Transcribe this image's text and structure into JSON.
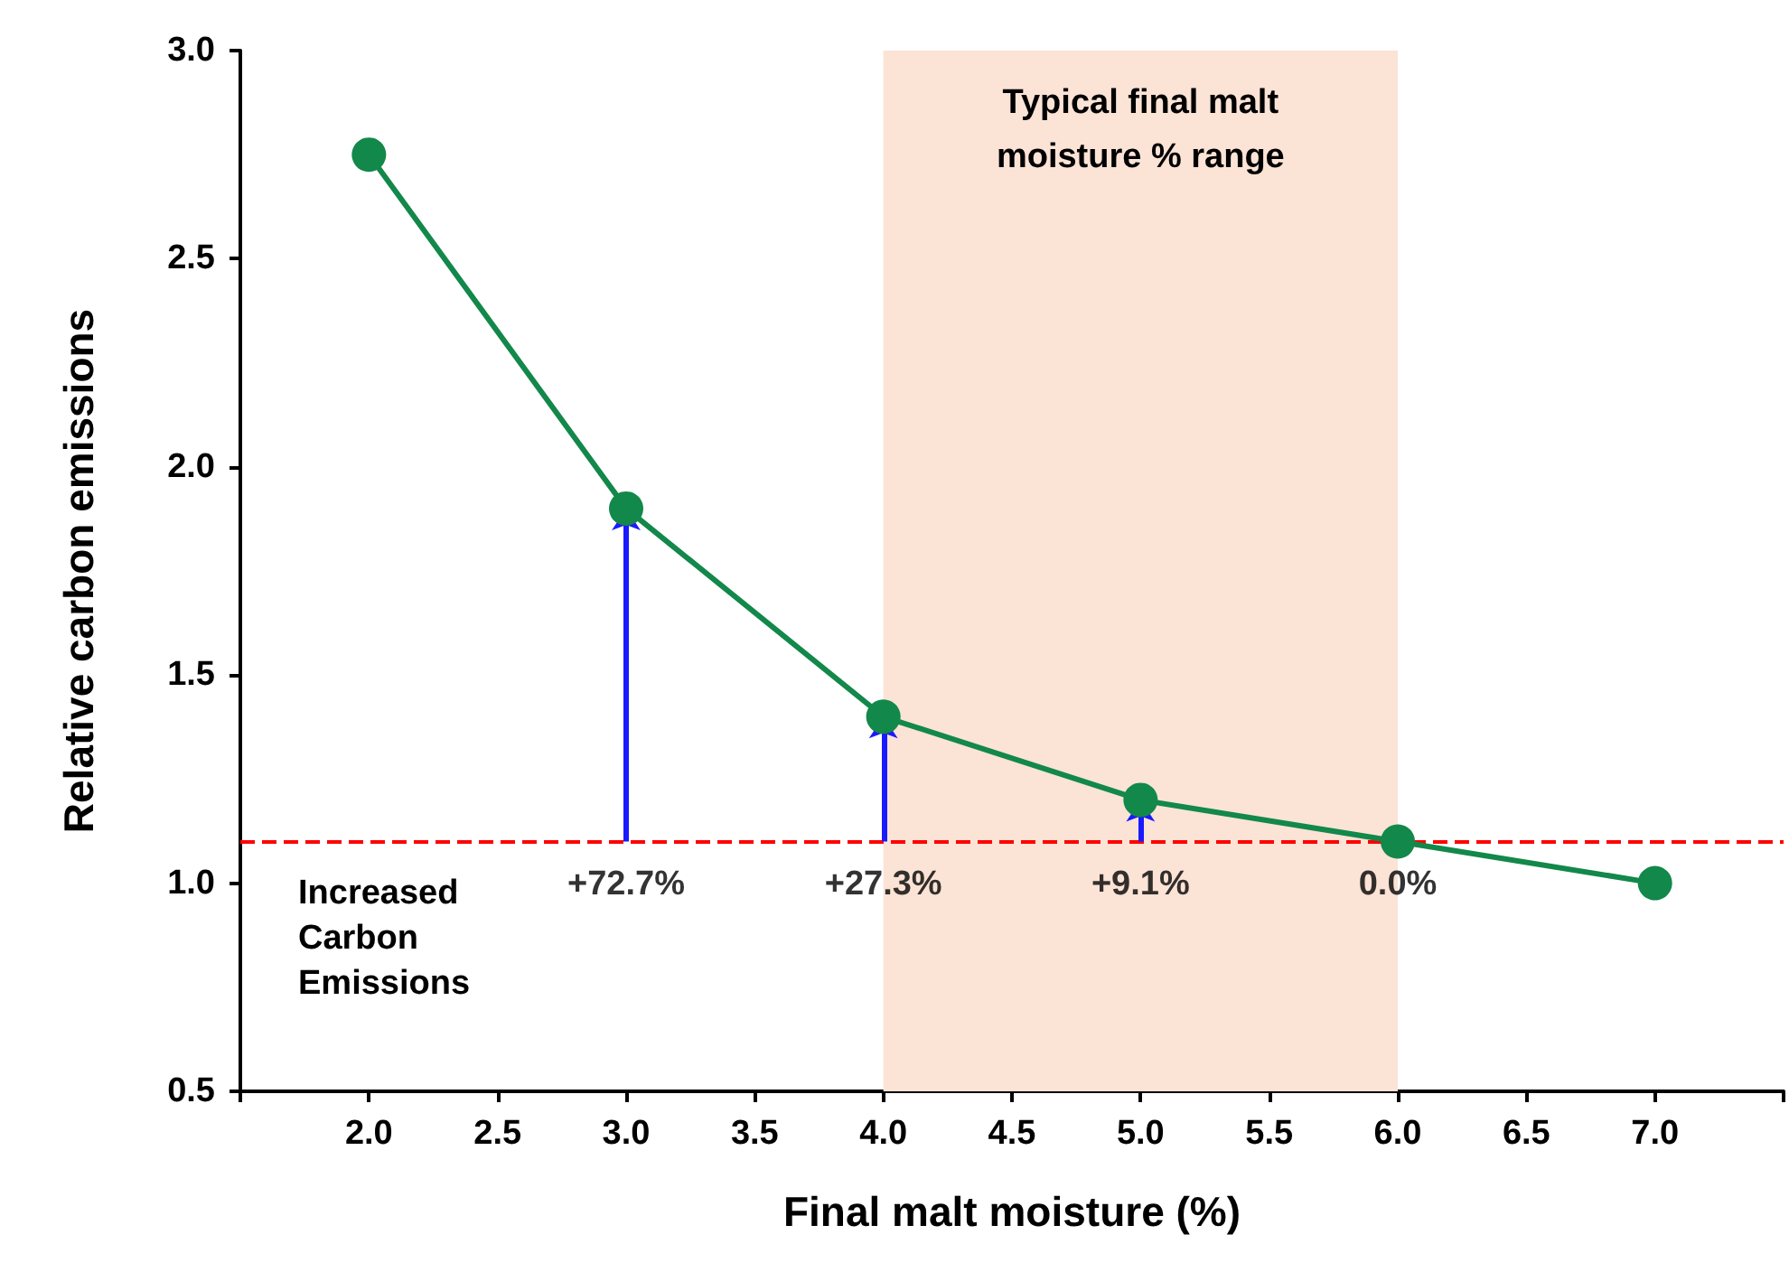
{
  "chart_data": {
    "type": "line",
    "xlabel": "Final malt moisture (%)",
    "ylabel": "Relative carbon emissions",
    "x": [
      2,
      3,
      4,
      5,
      6,
      7
    ],
    "series": [
      {
        "color": "#12884a",
        "values": [
          2.75,
          1.9,
          1.4,
          1.2,
          1.1,
          1.0
        ]
      }
    ],
    "marker": "circle",
    "line_style": "solid",
    "xlim": [
      1.5,
      7.5
    ],
    "xticks": [
      {
        "value": 1.5,
        "label": null
      },
      {
        "value": 2,
        "label": "2.0"
      },
      {
        "value": 2.5,
        "label": "2.5"
      },
      {
        "value": 3,
        "label": "3.0"
      },
      {
        "value": 3.5,
        "label": "3.5"
      },
      {
        "value": 4,
        "label": "4.0"
      },
      {
        "value": 4.5,
        "label": "4.5"
      },
      {
        "value": 5,
        "label": "5.0"
      },
      {
        "value": 5.5,
        "label": "5.5"
      },
      {
        "value": 6,
        "label": "6.0"
      },
      {
        "value": 6.5,
        "label": "6.5"
      },
      {
        "value": 7,
        "label": "7.0"
      },
      {
        "value": 7.5,
        "label": null
      }
    ],
    "ylim": [
      0.5,
      3.0
    ],
    "yticks": [
      {
        "value": 0.5,
        "label": "0.5"
      },
      {
        "value": 1,
        "label": "1.0"
      },
      {
        "value": 1.5,
        "label": "1.5"
      },
      {
        "value": 2,
        "label": "2.0"
      },
      {
        "value": 2.5,
        "label": "2.5"
      },
      {
        "value": 3,
        "label": "3.0"
      }
    ],
    "ref_lines": [
      {
        "axis": "y",
        "value": 1.1,
        "color": "#ff0000",
        "line_style": "dashed"
      }
    ],
    "bands": [
      {
        "axis": "x",
        "from": 4,
        "to": 6,
        "label": "Typical final malt\nmoisture % range",
        "color": "#fbe3d6"
      }
    ],
    "annotations": [
      "Increased\nCarbon\nEmissions",
      {
        "text": "+72.7%",
        "x": 3,
        "y": 1.9
      },
      {
        "text": "+27.3%",
        "x": 4,
        "y": 1.4
      },
      {
        "text": "+9.1%",
        "x": 5,
        "y": 1.2
      },
      {
        "text": "0.0%",
        "x": 6,
        "y": 1.1
      }
    ]
  }
}
